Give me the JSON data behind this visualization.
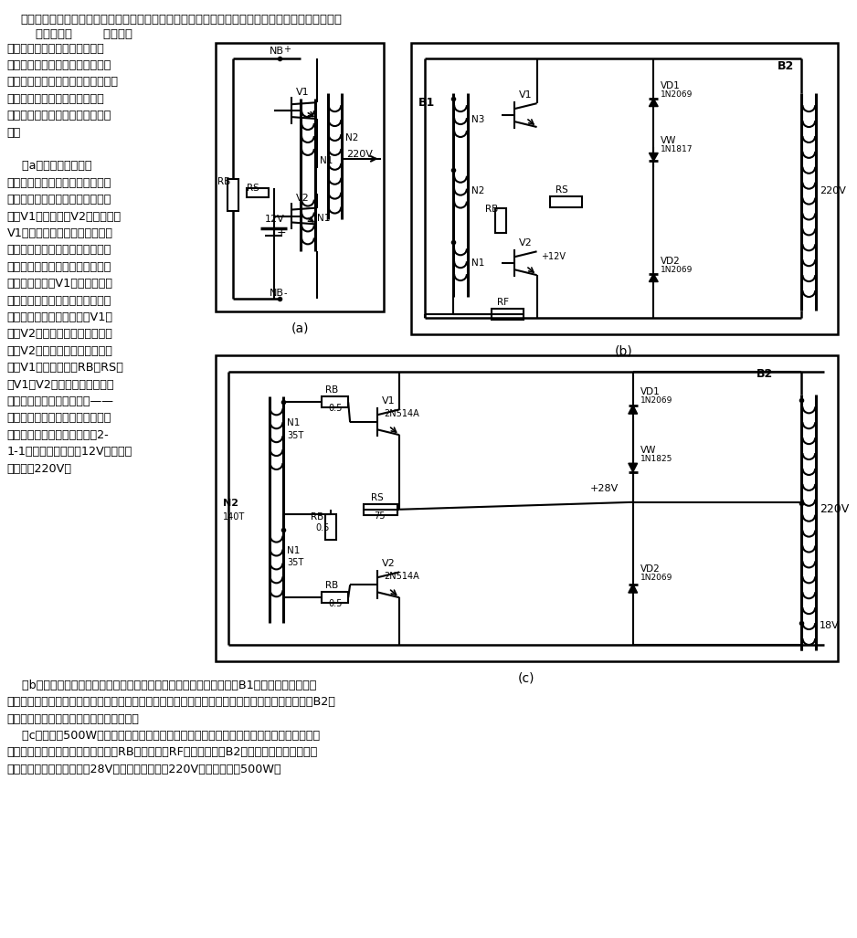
{
  "background_color": "#ffffff",
  "page_width": 9.38,
  "page_height": 10.27,
  "top_text1": "本电路利用晶体管、变压器作为核心部件完成将直流电变换成交流电再输送给负载（如电视机等）。",
  "top_text2": "    电路示于图        晶体管逆",
  "left_col": [
    "变电源又分为单变压器和双变压",
    "器两种。单变压器逆变电源适用于",
    "小功率场合，线路简单，制作容易。",
    "双变压器逆变电源适用于大功率",
    "场合，且能提高逆变效率，节省能",
    "源。",
    "",
    "    （a）是一个单变压器",
    "晶体管逆变电源。电路中任何一个",
    "不平衡都会引起一个晶体管导通，",
    "例如V1，正反馈使V2截止。随着",
    "V1集电极电流不断提高，变压器",
    "铁心逐渐饱和。此时变压器绕组中",
    "感应电压为零。结果造成基极激励",
    "不足，从而引起V1截止，集电极",
    "电流降为零。集电极电流的下降引",
    "起所有绕组极性反转，致使V1截",
    "止而V2导通。当铁心变为负饱和",
    "时，V2截止，其集电极电流变为",
    "零，V1又导通。增加RB和RS是",
    "给V1和V2的基极加一偏置，为",
    "的是提供启动电流和减小基——",
    "射极电压变化的影响。元器件参数",
    "的选取与输出功率的关系见表2-",
    "1-1。直流电源电压＝12V，交流输",
    "出电压＝220V。"
  ],
  "bottom_lines": [
    "    （b）是一个双变压器晶体管逆变电源电路。由于该电路只要求变压器B1的铁心是可饱和的，",
    "所以饱和所需的外加电流远远小于负载电流，这样可以有效地提高逆变效率，减小功耗。另外变压器B2可",
    "采用一般电源变压器铁心，可以降低成本。",
    "    （c）是一个500W双变压器晶体管逆变电源电路，它与上面电路相比较，除了元器件参数的",
    "功耗增大外，在晶体管基极上增加了RB，反馈电阻RF改接在变压器B2次级线圈的一个抽头上。",
    "性能参数：直流电源电压＝28V，交流输出电压＝220V，输出功率＝500W。"
  ]
}
